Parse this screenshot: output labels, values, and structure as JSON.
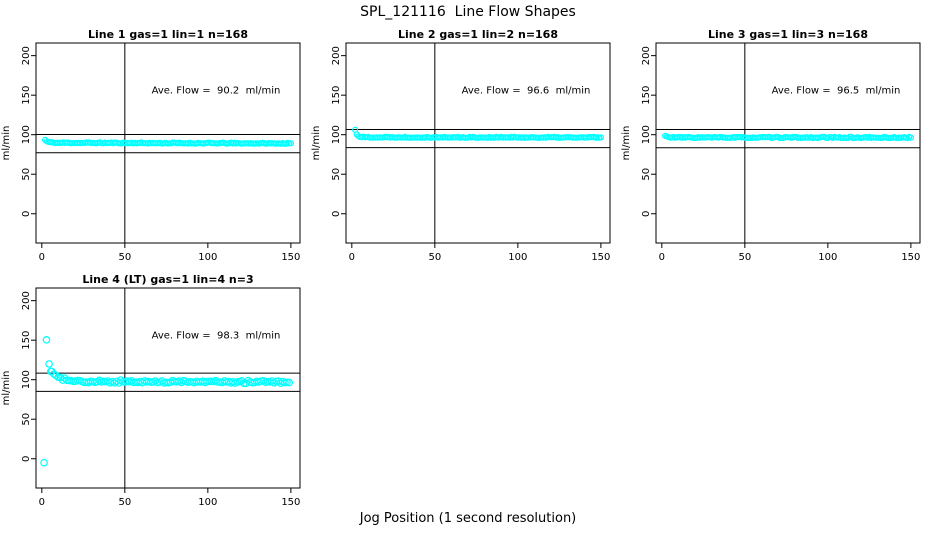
{
  "page_title": "SPL_121116  Line Flow Shapes",
  "xlabel": "Jog Position (1 second resolution)",
  "colors": {
    "marker": "#00ffff",
    "axis": "#000000",
    "background": "#ffffff"
  },
  "chart_data": [
    {
      "type": "scatter",
      "title": "Line 1 gas=1 lin=1 n=168",
      "annotation": "Ave. Flow =  90.2  ml/min",
      "ave_flow_ml_min": 90.2,
      "n": 168,
      "ylabel": "ml/min",
      "xticks": [
        0,
        50,
        100,
        150
      ],
      "yticks": [
        0,
        50,
        100,
        150,
        200
      ],
      "xlim": [
        -3.5,
        155.5
      ],
      "ylim": [
        -37,
        216
      ],
      "vline_x": 50,
      "hlines": [
        100.2,
        77.2
      ],
      "marker_radius": 2.5,
      "seed": 11,
      "band": {
        "x_start": 2,
        "x_end": 150,
        "step": 1,
        "base": 89.3,
        "slope": -0.006,
        "spike": 3.7,
        "spike_decay": 1.5,
        "jitter": 1.4,
        "jitter_mode": "positive"
      },
      "outliers": []
    },
    {
      "type": "scatter",
      "title": "Line 2 gas=1 lin=2 n=168",
      "annotation": "Ave. Flow =  96.6  ml/min",
      "ave_flow_ml_min": 96.6,
      "n": 168,
      "ylabel": "ml/min",
      "xticks": [
        0,
        50,
        100,
        150
      ],
      "yticks": [
        0,
        50,
        100,
        150,
        200
      ],
      "xlim": [
        -3.5,
        155.5
      ],
      "ylim": [
        -37,
        216
      ],
      "vline_x": 50,
      "hlines": [
        106.6,
        83.6
      ],
      "marker_radius": 2.5,
      "seed": 22,
      "band": {
        "x_start": 2,
        "x_end": 150,
        "step": 1,
        "base": 96.2,
        "slope": -0.002,
        "spike": 9.3,
        "spike_decay": 1.2,
        "jitter": 1.5,
        "jitter_mode": "positive"
      },
      "outliers": []
    },
    {
      "type": "scatter",
      "title": "Line 3 gas=1 lin=3 n=168",
      "annotation": "Ave. Flow =  96.5  ml/min",
      "ave_flow_ml_min": 96.5,
      "n": 168,
      "ylabel": "ml/min",
      "xticks": [
        0,
        50,
        100,
        150
      ],
      "yticks": [
        0,
        50,
        100,
        150,
        200
      ],
      "xlim": [
        -3.5,
        155.5
      ],
      "ylim": [
        -37,
        216
      ],
      "vline_x": 50,
      "hlines": [
        106.5,
        83.5
      ],
      "marker_radius": 2.5,
      "seed": 33,
      "band": {
        "x_start": 2,
        "x_end": 150,
        "step": 1,
        "base": 95.9,
        "slope": -0.001,
        "spike": 2.0,
        "spike_decay": 1.5,
        "jitter": 1.5,
        "jitter_mode": "positive"
      },
      "outliers": []
    },
    {
      "type": "scatter",
      "title": "Line 4 (LT) gas=1 lin=4 n=3",
      "annotation": "Ave. Flow =  98.3  ml/min",
      "ave_flow_ml_min": 98.3,
      "n": 3,
      "ylabel": "ml/min",
      "xticks": [
        0,
        50,
        100,
        150
      ],
      "yticks": [
        0,
        50,
        100,
        150,
        200
      ],
      "xlim": [
        -3.5,
        155.5
      ],
      "ylim": [
        -37,
        216
      ],
      "vline_x": 50,
      "hlines": [
        108.3,
        85.3
      ],
      "marker_radius": 3.2,
      "seed": 44,
      "band": {
        "x_start": 6,
        "x_end": 150,
        "step": 1.3,
        "base": 97.5,
        "slope": -0.002,
        "spike": 13,
        "spike_decay": 5,
        "jitter": 2.2,
        "jitter_mode": "symmetric"
      },
      "outliers": [
        [
          1.4,
          -5
        ],
        [
          2.8,
          150.5
        ],
        [
          4.4,
          120
        ],
        [
          5.4,
          110.5
        ]
      ]
    }
  ]
}
